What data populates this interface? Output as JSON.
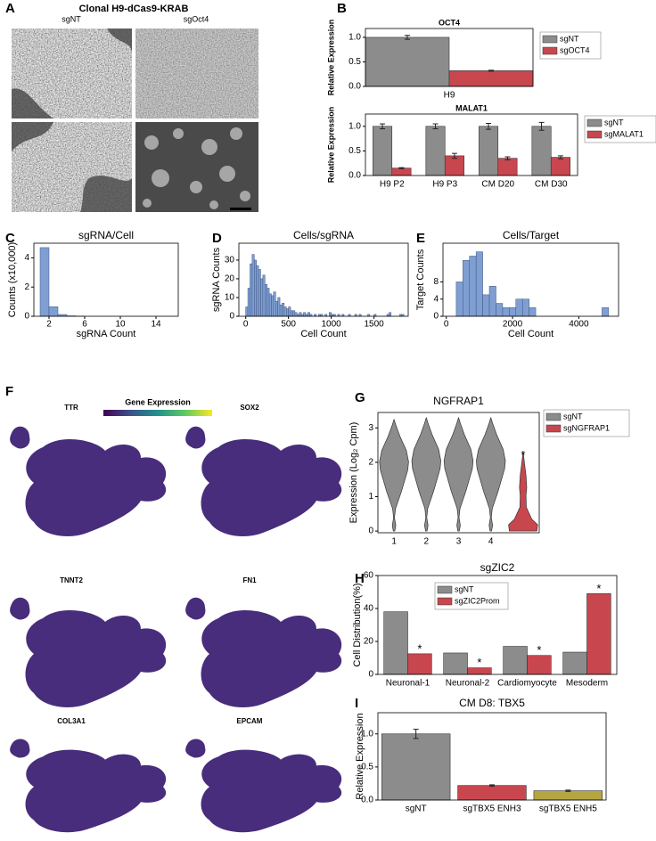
{
  "panel_A": {
    "panel": "A",
    "title": "Clonal H9-dCas9-KRAB",
    "columns": [
      "sgNT",
      "sgOct4"
    ]
  },
  "panel_F": {
    "panel": "F",
    "colorbar_label": "Gene Expression",
    "genes": [
      "TTR",
      "SOX2",
      "TNNT2",
      "FN1",
      "COL3A1",
      "EPCAM"
    ]
  },
  "chart_data": [
    {
      "panel": "B",
      "type": "bar",
      "title": "OCT4",
      "y_label": "Relative Expression",
      "categories": [
        "H9"
      ],
      "series": [
        {
          "name": "sgNT",
          "color": "#8c8c8c",
          "values": [
            1.0
          ],
          "errors": [
            0.04
          ]
        },
        {
          "name": "sgOCT4",
          "color": "#c8474f",
          "values": [
            0.32
          ],
          "errors": [
            0.01
          ]
        }
      ],
      "ylim": [
        0,
        1.18
      ],
      "yticks": [
        {
          "value": 0,
          "label": "0.0"
        },
        {
          "value": 0.5,
          "label": "0.5"
        },
        {
          "value": 1,
          "label": "1.0"
        }
      ]
    },
    {
      "type": "bar",
      "title": "MALAT1",
      "y_label": "Relative Expression",
      "categories": [
        "H9 P2",
        "H9 P3",
        "CM D20",
        "CM D30"
      ],
      "series": [
        {
          "name": "sgNT",
          "color": "#8c8c8c",
          "values": [
            1.0,
            1.0,
            1.0,
            1.0
          ],
          "errors": [
            0.05,
            0.05,
            0.06,
            0.08
          ]
        },
        {
          "name": "sgMALAT1",
          "color": "#c8474f",
          "values": [
            0.15,
            0.4,
            0.35,
            0.37
          ],
          "errors": [
            0.01,
            0.05,
            0.03,
            0.03
          ]
        }
      ],
      "ylim": [
        0,
        1.25
      ],
      "yticks": [
        {
          "value": 0,
          "label": "0.0"
        },
        {
          "value": 0.5,
          "label": "0.5"
        },
        {
          "value": 1,
          "label": "1.0"
        }
      ]
    },
    {
      "panel": "C",
      "type": "histogram",
      "title": "sgRNA/Cell",
      "x_label": "sgRNA Count",
      "y_label": "Counts (x10,000)",
      "color": "#7f9fd2",
      "bins": [
        1,
        2,
        3,
        4,
        5,
        6
      ],
      "counts": [
        4.7,
        0.65,
        0.12,
        0.03,
        0.01
      ],
      "xlim": [
        0.3,
        16.5
      ],
      "xticks": [
        2,
        6,
        10,
        14
      ],
      "ylim": [
        0,
        5
      ],
      "yticks": [
        0,
        2,
        4
      ]
    },
    {
      "panel": "D",
      "type": "histogram",
      "title": "Cells/sgRNA",
      "x_label": "Cell Count",
      "y_label": "sgRNA Counts",
      "color": "#7f9fd2",
      "bins": [
        0,
        25,
        50,
        75,
        100,
        125,
        150,
        175,
        200,
        225,
        250,
        275,
        300,
        325,
        350,
        375,
        400,
        425,
        450,
        475,
        500,
        525,
        550,
        575,
        600,
        625,
        650,
        675,
        700,
        725,
        750,
        775,
        800,
        825,
        850,
        875,
        900,
        925,
        950,
        975,
        1000,
        1025,
        1050,
        1075,
        1100,
        1125,
        1150,
        1175,
        1200,
        1225,
        1250,
        1275,
        1300,
        1325,
        1350,
        1375,
        1400,
        1425,
        1450,
        1475,
        1500,
        1525,
        1550,
        1575,
        1600,
        1625,
        1650,
        1675,
        1700,
        1725,
        1750,
        1775,
        1800,
        1825,
        1850
      ],
      "counts": [
        5,
        15,
        28,
        33,
        30,
        27,
        25,
        20,
        22,
        17,
        15,
        12,
        11,
        13,
        8,
        10,
        6,
        7,
        5,
        4,
        5,
        3,
        3,
        2,
        1,
        2,
        1,
        2,
        1,
        2,
        1,
        0,
        1,
        0,
        1,
        1,
        0,
        1,
        0,
        2,
        1,
        1,
        0,
        1,
        0,
        1,
        0,
        0,
        1,
        0,
        0,
        1,
        0,
        1,
        0,
        0,
        0,
        1,
        0,
        0,
        1,
        0,
        0,
        0,
        0,
        0,
        1,
        2,
        0,
        0,
        0,
        0,
        1,
        1
      ],
      "xlim": [
        -80,
        1900
      ],
      "xticks": [
        0,
        500,
        1000,
        1500
      ],
      "ylim": [
        0,
        39
      ],
      "yticks": [
        0,
        10,
        20,
        30
      ]
    },
    {
      "panel": "E",
      "type": "histogram",
      "title": "Cells/Target",
      "x_label": "Cell Count",
      "y_label": "Target Counts",
      "color": "#7f9fd2",
      "bins": [
        300,
        500,
        700,
        900,
        1100,
        1300,
        1500,
        1700,
        1900,
        2100,
        2300,
        2500,
        2700,
        2900,
        3100,
        3300,
        3500,
        3700,
        3900,
        4100,
        4300,
        4500,
        4700,
        4900,
        5100
      ],
      "counts": [
        8,
        13,
        14,
        15,
        5,
        7,
        3,
        2,
        2,
        4,
        4,
        2,
        0,
        0,
        0,
        0,
        0,
        0,
        0,
        0,
        0,
        0,
        2,
        0
      ],
      "xlim": [
        -100,
        5200
      ],
      "xticks": [
        0,
        2000,
        4000
      ],
      "ylim": [
        0,
        17
      ],
      "yticks": [
        0,
        4,
        8
      ]
    },
    {
      "panel": "G",
      "type": "violin",
      "title": "NGFRAP1",
      "y_label": "Expression (Log₂ Cpm)",
      "categories": [
        "1",
        "2",
        "3",
        "4",
        null
      ],
      "series": [
        {
          "name": "sgNT",
          "color": "#8c8c8c",
          "max": [
            3.25,
            3.3,
            3.3,
            3.3,
            null
          ]
        },
        {
          "name": "sgNGFRAP1",
          "color": "#c8474f",
          "max": [
            null,
            null,
            null,
            null,
            2.3
          ],
          "annotations": [
            null,
            null,
            null,
            null,
            "*"
          ]
        }
      ],
      "ylim": [
        -0.05,
        3.45
      ],
      "yticks": [
        0,
        1,
        2,
        3
      ]
    },
    {
      "panel": "H",
      "type": "bar",
      "title": "sgZIC2",
      "y_label": "Cell Distribution(%)",
      "categories": [
        "Neuronal-1",
        "Neuronal-2",
        "Cardiomyocyte",
        "Mesoderm"
      ],
      "series": [
        {
          "name": "sgNT",
          "color": "#8c8c8c",
          "values": [
            38,
            13,
            17,
            13.5
          ]
        },
        {
          "name": "sgZIC2Prom",
          "color": "#c8474f",
          "values": [
            12.5,
            4,
            11.5,
            49
          ],
          "annotations": [
            "*",
            "*",
            "*",
            "*"
          ]
        }
      ],
      "ylim": [
        0,
        60
      ],
      "yticks": [
        0,
        20,
        40,
        60
      ]
    },
    {
      "panel": "I",
      "type": "bar",
      "title": "CM D8: TBX5",
      "y_label": "Relative Expression",
      "categories": [
        "sgNT",
        "sgTBX5 ENH3",
        "sgTBX5 ENH5"
      ],
      "values": [
        1.0,
        0.22,
        0.14
      ],
      "errors": [
        0.07,
        0.01,
        0.01
      ],
      "colors": [
        "#8c8c8c",
        "#c8474f",
        "#b5a642"
      ],
      "ylim": [
        0,
        1.32
      ],
      "yticks": [
        {
          "value": 0,
          "label": "0.0"
        },
        {
          "value": 0.5,
          "label": "0.5"
        },
        {
          "value": 1,
          "label": "1.0"
        }
      ]
    }
  ]
}
